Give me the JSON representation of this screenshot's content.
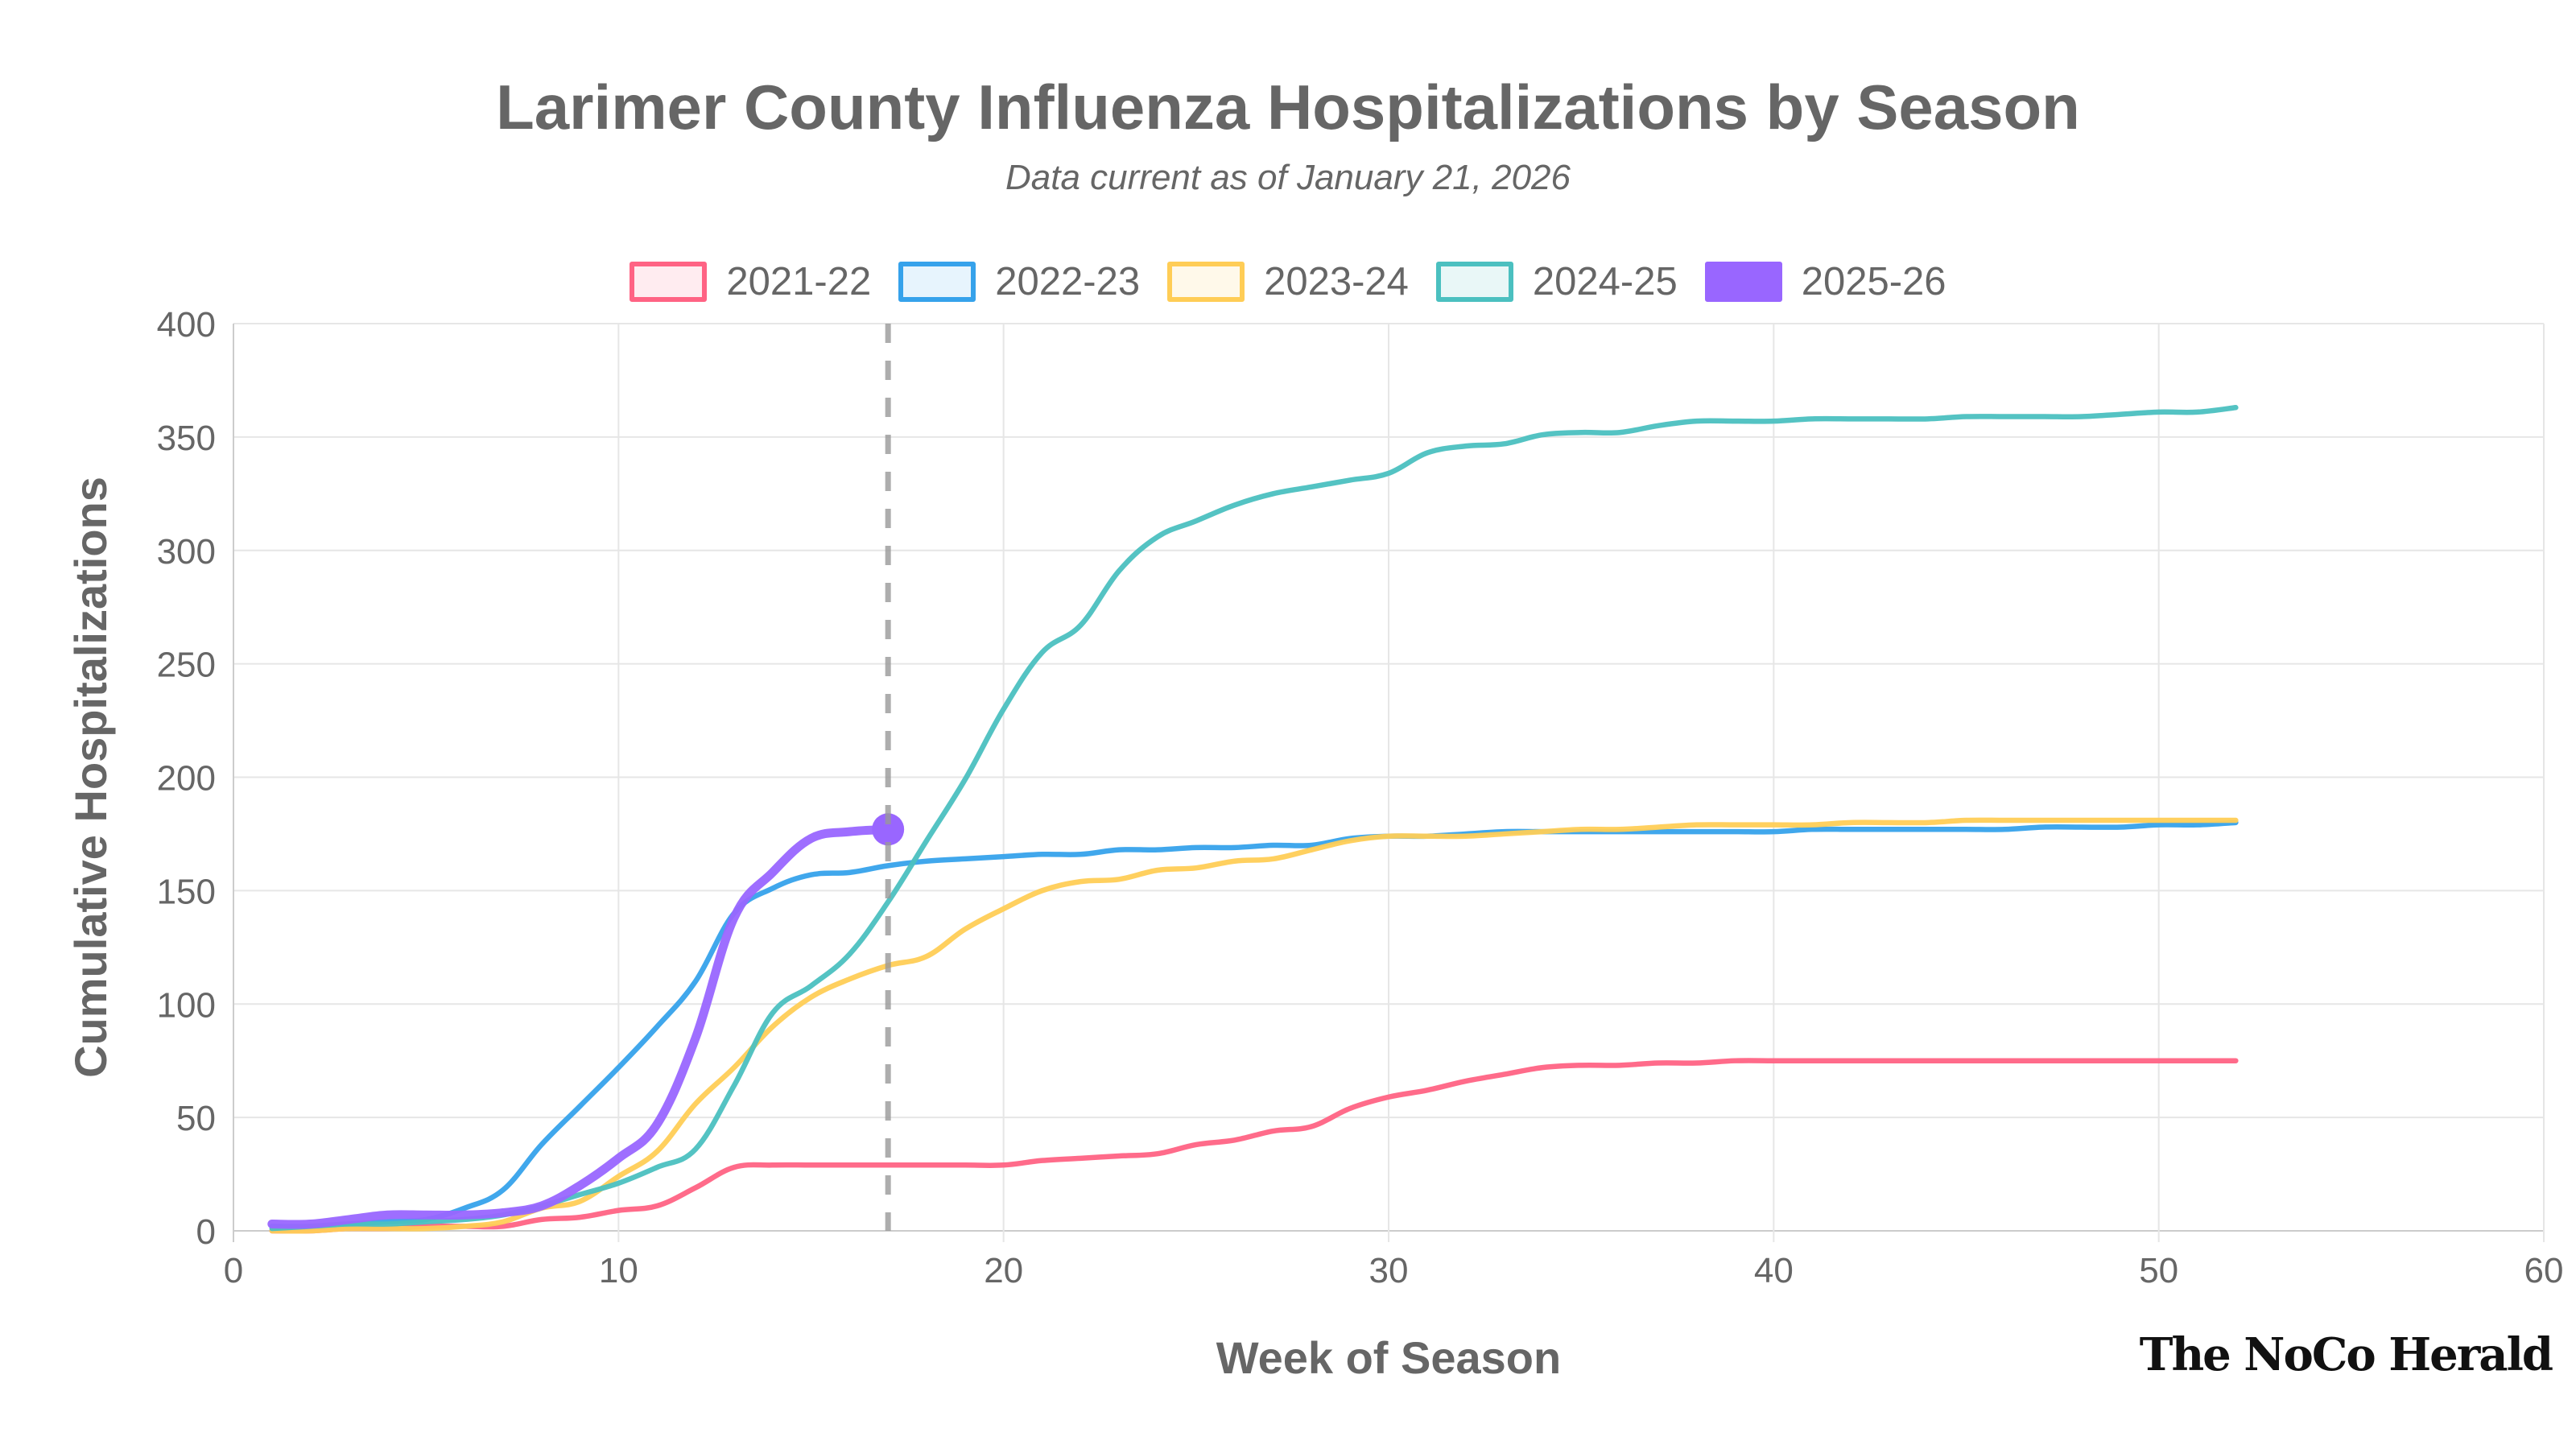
{
  "chart_data": {
    "type": "line",
    "title": "Larimer County Influenza Hospitalizations by Season",
    "subtitle": "Data current as of January 21, 2026",
    "xlabel": "Week of Season",
    "ylabel": "Cumulative Hospitalizations",
    "xlim": [
      0,
      60
    ],
    "ylim": [
      0,
      400
    ],
    "xticks": [
      0,
      10,
      20,
      30,
      40,
      50,
      60
    ],
    "yticks": [
      0,
      50,
      100,
      150,
      200,
      250,
      300,
      350,
      400
    ],
    "grid": true,
    "legend_position": "top",
    "reference_line_week": 17,
    "series": [
      {
        "name": "2021-22",
        "color": "#ff6384",
        "x": [
          1,
          2,
          3,
          4,
          5,
          6,
          7,
          8,
          9,
          10,
          11,
          12,
          13,
          14,
          15,
          16,
          17,
          18,
          19,
          20,
          21,
          22,
          23,
          24,
          25,
          26,
          27,
          28,
          29,
          30,
          31,
          32,
          33,
          34,
          35,
          36,
          37,
          38,
          39,
          40,
          41,
          42,
          43,
          44,
          45,
          46,
          47,
          48,
          49,
          50,
          51,
          52
        ],
        "values": [
          0,
          0,
          1,
          1,
          2,
          2,
          2,
          5,
          6,
          9,
          11,
          19,
          28,
          29,
          29,
          29,
          29,
          29,
          29,
          29,
          31,
          32,
          33,
          34,
          38,
          40,
          44,
          46,
          54,
          59,
          62,
          66,
          69,
          72,
          73,
          73,
          74,
          74,
          75,
          75,
          75,
          75,
          75,
          75,
          75,
          75,
          75,
          75,
          75,
          75,
          75,
          75
        ]
      },
      {
        "name": "2022-23",
        "color": "#36a2eb",
        "x": [
          1,
          2,
          3,
          4,
          5,
          6,
          7,
          8,
          9,
          10,
          11,
          12,
          13,
          14,
          15,
          16,
          17,
          18,
          19,
          20,
          21,
          22,
          23,
          24,
          25,
          26,
          27,
          28,
          29,
          30,
          31,
          32,
          33,
          34,
          35,
          36,
          37,
          38,
          39,
          40,
          41,
          42,
          43,
          44,
          45,
          46,
          47,
          48,
          49,
          50,
          51,
          52
        ],
        "values": [
          2,
          2,
          3,
          4,
          5,
          10,
          18,
          38,
          55,
          72,
          90,
          110,
          140,
          151,
          157,
          158,
          161,
          163,
          164,
          165,
          166,
          166,
          168,
          168,
          169,
          169,
          170,
          170,
          173,
          174,
          174,
          175,
          176,
          176,
          176,
          176,
          176,
          176,
          176,
          176,
          177,
          177,
          177,
          177,
          177,
          177,
          178,
          178,
          178,
          179,
          179,
          180
        ]
      },
      {
        "name": "2023-24",
        "color": "#ffcd56",
        "x": [
          1,
          2,
          3,
          4,
          5,
          6,
          7,
          8,
          9,
          10,
          11,
          12,
          13,
          14,
          15,
          16,
          17,
          18,
          19,
          20,
          21,
          22,
          23,
          24,
          25,
          26,
          27,
          28,
          29,
          30,
          31,
          32,
          33,
          34,
          35,
          36,
          37,
          38,
          39,
          40,
          41,
          42,
          43,
          44,
          45,
          46,
          47,
          48,
          49,
          50,
          51,
          52
        ],
        "values": [
          0,
          0,
          1,
          1,
          1,
          2,
          4,
          10,
          13,
          24,
          35,
          56,
          72,
          90,
          103,
          111,
          117,
          121,
          133,
          142,
          150,
          154,
          155,
          159,
          160,
          163,
          164,
          168,
          172,
          174,
          174,
          174,
          175,
          176,
          177,
          177,
          178,
          179,
          179,
          179,
          179,
          180,
          180,
          180,
          181,
          181,
          181,
          181,
          181,
          181,
          181,
          181
        ]
      },
      {
        "name": "2024-25",
        "color": "#4bc0c0",
        "x": [
          1,
          2,
          3,
          4,
          5,
          6,
          7,
          8,
          9,
          10,
          11,
          12,
          13,
          14,
          15,
          16,
          17,
          18,
          19,
          20,
          21,
          22,
          23,
          24,
          25,
          26,
          27,
          28,
          29,
          30,
          31,
          32,
          33,
          34,
          35,
          36,
          37,
          38,
          39,
          40,
          41,
          42,
          43,
          44,
          45,
          46,
          47,
          48,
          49,
          50,
          51,
          52
        ],
        "values": [
          1,
          2,
          3,
          3,
          4,
          5,
          7,
          11,
          16,
          21,
          28,
          36,
          64,
          96,
          108,
          122,
          145,
          172,
          199,
          230,
          255,
          267,
          291,
          306,
          313,
          320,
          325,
          328,
          331,
          334,
          343,
          346,
          347,
          351,
          352,
          352,
          355,
          357,
          357,
          357,
          358,
          358,
          358,
          358,
          359,
          359,
          359,
          359,
          360,
          361,
          361,
          363
        ]
      },
      {
        "name": "2025-26",
        "color": "#9966ff",
        "x": [
          1,
          2,
          3,
          4,
          5,
          6,
          7,
          8,
          9,
          10,
          11,
          12,
          13,
          14,
          15,
          16,
          17
        ],
        "values": [
          3,
          3,
          5,
          7,
          7,
          7,
          8,
          11,
          20,
          32,
          47,
          85,
          138,
          158,
          173,
          176,
          177
        ]
      }
    ]
  },
  "branding": {
    "logo_text": "The NoCo Herald"
  }
}
